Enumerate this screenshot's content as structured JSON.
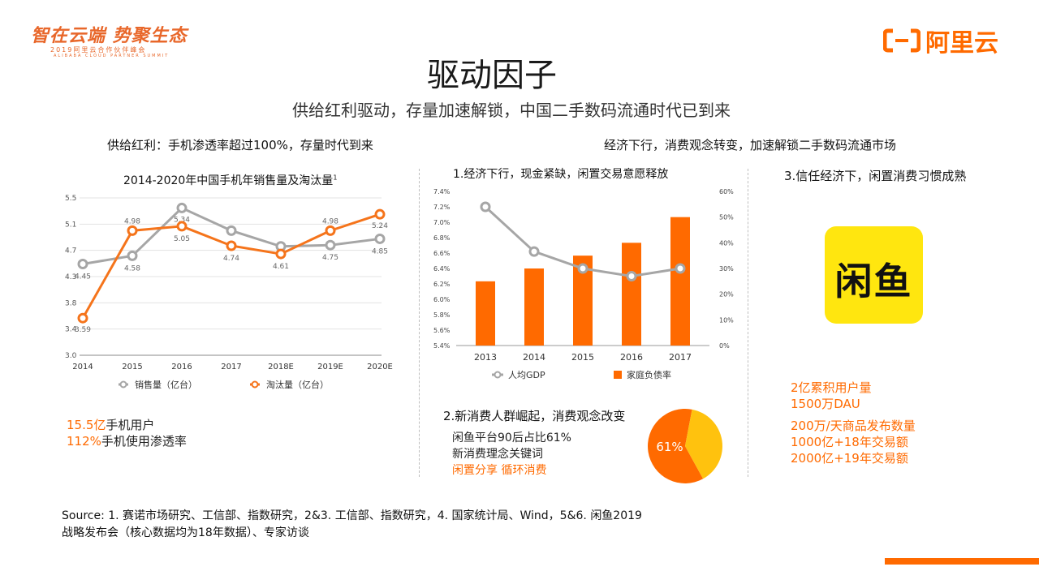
{
  "header": {
    "slogan": "智在云端 势聚生态",
    "summit_year": "2019阿里云合作伙伴峰会",
    "summit_en": "ALIBABA CLOUD PARTNER SUMMIT",
    "brand": "阿里云",
    "brand_color": "#ff6a00"
  },
  "title": "驱动因子",
  "subtitle": "供给红利驱动，存量加速解锁，中国二手数码流通时代已到来",
  "left": {
    "heading": "供给红利：手机渗透率超过100%，存量时代到来",
    "stats": [
      {
        "value": "15.5亿",
        "label": "手机用户"
      },
      {
        "value": "112%",
        "label": "手机使用渗透率"
      }
    ]
  },
  "right_heading": "经济下行，消费观念转变，加速解锁二手数码流通市场",
  "middle": {
    "chart_title": "1.经济下行，现金紧缺，闲置交易意愿释放",
    "consumer_title": "2.新消费人群崛起，消费观念改变",
    "consumer_lines": [
      "闲鱼平台90后占比61%",
      "新消费理念关键词"
    ],
    "consumer_keywords": "闲置分享 循环消费",
    "pie_label": "61%"
  },
  "right": {
    "heading": "3.信任经济下，闲置消费习惯成熟",
    "logo_text": "闲鱼",
    "stats_a": [
      {
        "value": "2亿",
        "label": "累积用户量"
      },
      {
        "value": "1500万",
        "label": "DAU"
      }
    ],
    "stats_b": [
      {
        "value": "200万",
        "label": "/天商品发布数量"
      },
      {
        "value": "1000亿",
        "label": "+18年交易额"
      },
      {
        "value": "2000亿",
        "label": "+19年交易额"
      }
    ]
  },
  "source": "Source: 1. 赛诺市场研究、工信部、指数研究，2&3. 工信部、指数研究，4. 国家统计局、Wind，5&6. 闲鱼2019战略发布会（核心数据均为18年数据）、专家访谈",
  "chart_data": [
    {
      "type": "line",
      "title": "2014-2020年中国手机年销售量及淘汰量",
      "title_sup": "1",
      "categories": [
        "2014",
        "2015",
        "2016",
        "2017",
        "2018E",
        "2019E",
        "2020E"
      ],
      "yticks": [
        "3.0",
        "3.4",
        "3.8",
        "4.3",
        "4.7",
        "5.1",
        "5.5"
      ],
      "ylim": [
        3.0,
        5.5
      ],
      "grid": true,
      "legend_position": "bottom",
      "series": [
        {
          "name": "销售量（亿台）",
          "color": "#a6a6a6",
          "values": [
            4.45,
            4.58,
            5.34,
            4.98,
            4.73,
            4.75,
            4.85
          ],
          "labels": [
            "4.45",
            "4.58",
            "5.34",
            "",
            "",
            "4.75",
            "4.85"
          ]
        },
        {
          "name": "淘汰量（亿台）",
          "color": "#f5741b",
          "values": [
            3.59,
            4.98,
            5.05,
            4.74,
            4.61,
            4.98,
            5.24
          ],
          "labels": [
            "3.59",
            "4.98",
            "5.05",
            "4.74",
            "4.61",
            "4.98",
            "5.24"
          ]
        }
      ]
    },
    {
      "type": "bar",
      "categories": [
        "2013",
        "2014",
        "2015",
        "2016",
        "2017"
      ],
      "left_ticks": [
        "5.4%",
        "5.6%",
        "5.8%",
        "6.0%",
        "6.2%",
        "6.4%",
        "6.6%",
        "6.8%",
        "7.0%",
        "7.2%",
        "7.4%"
      ],
      "right_ticks": [
        "0%",
        "10%",
        "20%",
        "30%",
        "40%",
        "50%",
        "60%"
      ],
      "left_ylim": [
        5.4,
        7.4
      ],
      "right_ylim": [
        0,
        60
      ],
      "legend_position": "bottom",
      "series": [
        {
          "name": "人均GDP",
          "type": "line",
          "axis": "left",
          "color": "#a6a6a6",
          "values": [
            7.2,
            6.62,
            6.4,
            6.3,
            6.4
          ]
        },
        {
          "name": "家庭负债率",
          "type": "bar",
          "axis": "right",
          "color": "#ff6a00",
          "values": [
            25,
            30,
            35,
            40,
            50
          ]
        }
      ]
    },
    {
      "type": "pie",
      "values": [
        61,
        39
      ],
      "labels": [
        "61%",
        ""
      ],
      "colors": [
        "#ff6a00",
        "#ffc20e"
      ]
    }
  ]
}
